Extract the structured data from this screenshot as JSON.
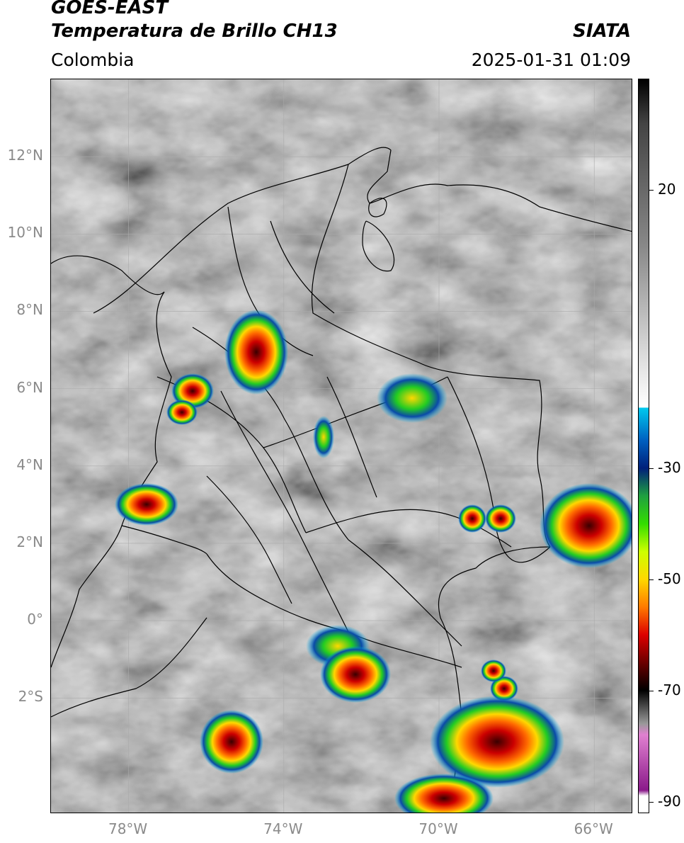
{
  "header": {
    "title_main": "GOES-EAST",
    "title_sub": "Temperatura de Brillo CH13",
    "organization": "SIATA",
    "region": "Colombia",
    "datetime": "2025-01-31 01:09"
  },
  "map": {
    "lat_labels": [
      {
        "text": "12°N",
        "value": 12
      },
      {
        "text": "10°N",
        "value": 10
      },
      {
        "text": "8°N",
        "value": 8
      },
      {
        "text": "6°N",
        "value": 6
      },
      {
        "text": "4°N",
        "value": 4
      },
      {
        "text": "2°N",
        "value": 2
      },
      {
        "text": "0°",
        "value": 0
      },
      {
        "text": "2°S",
        "value": -2
      }
    ],
    "lon_labels": [
      {
        "text": "78°W",
        "value": -78
      },
      {
        "text": "74°W",
        "value": -74
      },
      {
        "text": "70°W",
        "value": -70
      },
      {
        "text": "66°W",
        "value": -66
      }
    ],
    "extent": {
      "lon_min": -80,
      "lon_max": -65,
      "lat_min": -5,
      "lat_max": 14
    },
    "grid": true,
    "colors": {
      "background_gray": "#8a8a8a",
      "border": "#000000"
    }
  },
  "colorbar": {
    "labels": [
      {
        "text": "20",
        "value": 20
      },
      {
        "text": "-30",
        "value": -30
      },
      {
        "text": "-50",
        "value": -50
      },
      {
        "text": "-70",
        "value": -70
      },
      {
        "text": "-90",
        "value": -90
      }
    ],
    "range": [
      -92,
      40
    ]
  }
}
